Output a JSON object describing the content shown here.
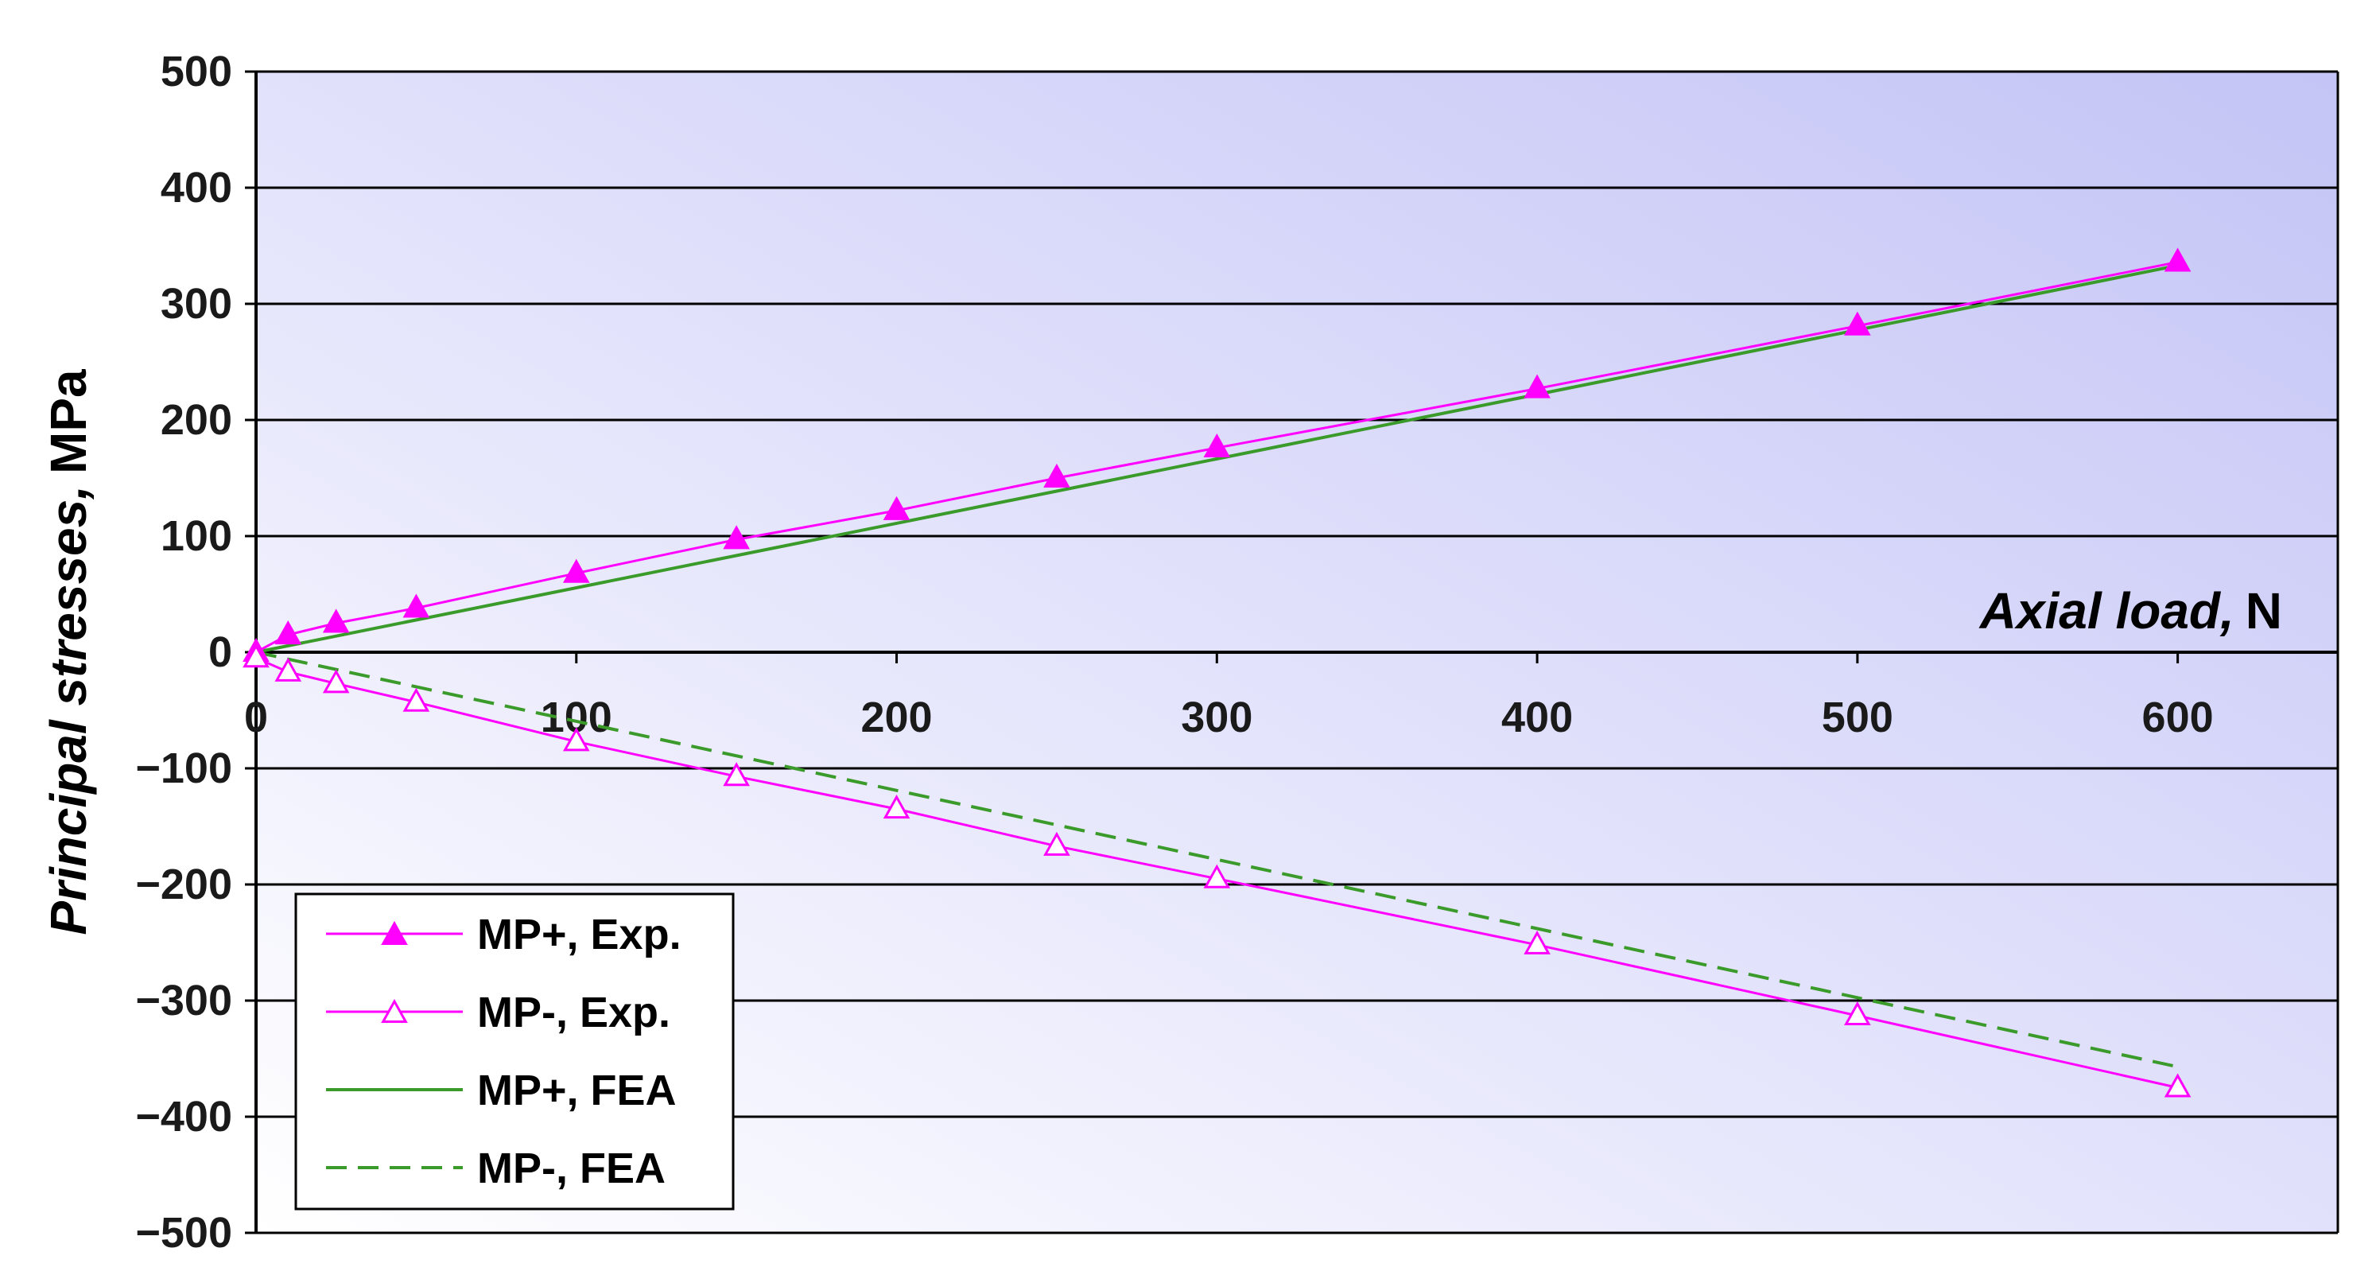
{
  "chart_data": {
    "type": "line",
    "xlabel_italic": "Axial load,",
    "xlabel_unit": "N",
    "ylabel_italic": "Principal stresses,",
    "ylabel_unit": "MPa",
    "xlim": [
      0,
      650
    ],
    "ylim": [
      -500,
      500
    ],
    "xticks": [
      0,
      100,
      200,
      300,
      400,
      500,
      600
    ],
    "yticks": [
      500,
      400,
      300,
      200,
      100,
      0,
      -100,
      -200,
      -300,
      -400,
      -500
    ],
    "ytick_labels": [
      "500",
      "400",
      "300",
      "200",
      "100",
      "0",
      "−100",
      "−200",
      "−300",
      "−400",
      "−500"
    ],
    "grid": "horizontal",
    "legend_position": "bottom-left",
    "series": [
      {
        "name": "MP+, Exp.",
        "color": "#ff00ff",
        "style": "solid",
        "marker": "filled-triangle",
        "x": [
          0,
          10,
          25,
          50,
          100,
          150,
          200,
          250,
          300,
          400,
          500,
          600
        ],
        "y": [
          0,
          15,
          25,
          38,
          68,
          97,
          122,
          150,
          176,
          227,
          281,
          336
        ]
      },
      {
        "name": "MP-, Exp.",
        "color": "#ff00ff",
        "style": "solid",
        "marker": "open-triangle",
        "x": [
          0,
          10,
          25,
          50,
          100,
          150,
          200,
          250,
          300,
          400,
          500,
          600
        ],
        "y": [
          -5,
          -17,
          -27,
          -43,
          -77,
          -107,
          -135,
          -167,
          -195,
          -252,
          -313,
          -375
        ]
      },
      {
        "name": "MP+, FEA",
        "color": "#3a9a2a",
        "style": "solid",
        "marker": "none",
        "x": [
          0,
          600
        ],
        "y": [
          0,
          333
        ]
      },
      {
        "name": "MP-, FEA",
        "color": "#3a9a2a",
        "style": "dashed",
        "marker": "none",
        "x": [
          0,
          600
        ],
        "y": [
          0,
          -357
        ]
      }
    ]
  }
}
